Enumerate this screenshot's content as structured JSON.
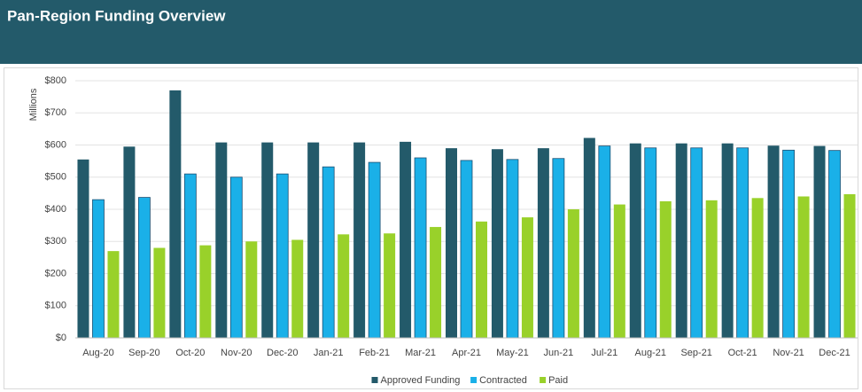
{
  "chart_data": {
    "type": "bar",
    "title": "Pan-Region Funding Overview",
    "y_label": "Millions",
    "categories": [
      "Aug-20",
      "Sep-20",
      "Oct-20",
      "Nov-20",
      "Dec-20",
      "Jan-21",
      "Feb-21",
      "Mar-21",
      "Apr-21",
      "May-21",
      "Jun-21",
      "Jul-21",
      "Aug-21",
      "Sep-21",
      "Oct-21",
      "Nov-21",
      "Dec-21"
    ],
    "series": [
      {
        "name": "Approved Funding",
        "color": "#235a6a",
        "values": [
          555,
          595,
          770,
          608,
          608,
          608,
          608,
          610,
          590,
          587,
          590,
          622,
          605,
          605,
          605,
          598,
          597
        ]
      },
      {
        "name": "Contracted",
        "color": "#1ab0e8",
        "values": [
          430,
          437,
          510,
          500,
          510,
          532,
          546,
          560,
          552,
          555,
          558,
          597,
          591,
          591,
          591,
          584,
          583
        ]
      },
      {
        "name": "Paid",
        "color": "#99d12a",
        "values": [
          270,
          280,
          288,
          300,
          305,
          322,
          325,
          345,
          362,
          375,
          400,
          415,
          425,
          428,
          435,
          440,
          447
        ]
      }
    ],
    "ylim": [
      0,
      800
    ],
    "yticks": [
      {
        "value": 0,
        "label": "$0"
      },
      {
        "value": 100,
        "label": "$100"
      },
      {
        "value": 200,
        "label": "$200"
      },
      {
        "value": 300,
        "label": "$300"
      },
      {
        "value": 400,
        "label": "$400"
      },
      {
        "value": 500,
        "label": "$500"
      },
      {
        "value": 600,
        "label": "$600"
      },
      {
        "value": 700,
        "label": "$700"
      },
      {
        "value": 800,
        "label": "$800"
      }
    ],
    "grid": true,
    "legend": "bottom"
  }
}
